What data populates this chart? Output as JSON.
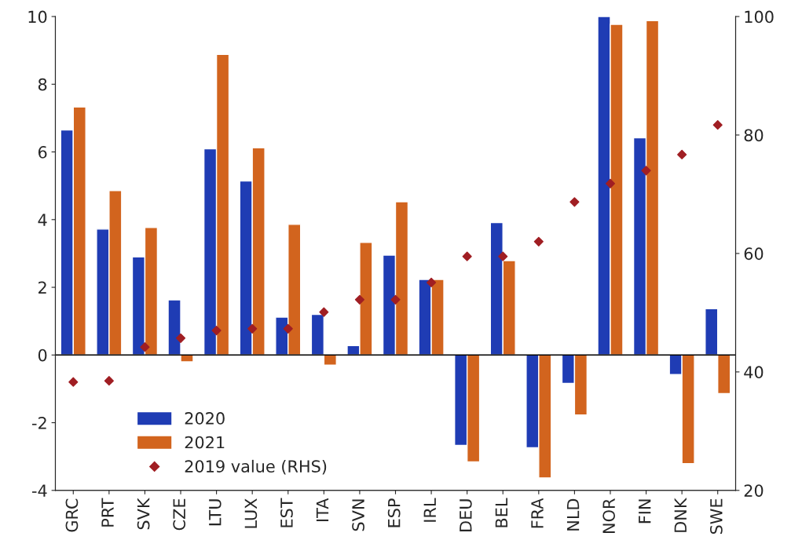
{
  "chart_data": {
    "type": "bar",
    "categories": [
      "GRC",
      "PRT",
      "SVK",
      "CZE",
      "LTU",
      "LUX",
      "EST",
      "ITA",
      "SVN",
      "ESP",
      "IRL",
      "DEU",
      "BEL",
      "FRA",
      "NLD",
      "NOR",
      "FIN",
      "DNK",
      "SWE"
    ],
    "series": [
      {
        "name": "2020",
        "color": "#1f3cb4",
        "values": [
          6.65,
          3.72,
          2.9,
          1.63,
          6.09,
          5.14,
          1.12,
          1.2,
          0.28,
          2.95,
          2.23,
          -2.67,
          3.91,
          -2.74,
          -0.84,
          10.0,
          6.42,
          -0.58,
          1.37
        ]
      },
      {
        "name": "2021",
        "color": "#d2641e",
        "values": [
          7.33,
          4.86,
          3.77,
          -0.2,
          8.88,
          6.12,
          3.86,
          -0.3,
          3.33,
          4.53,
          2.23,
          -3.16,
          2.79,
          -3.63,
          -1.77,
          9.77,
          9.88,
          -3.21,
          -1.14
        ]
      },
      {
        "name": "2019 value (RHS)",
        "type": "scatter",
        "axis": "y2",
        "marker": "diamond",
        "color": "#a01e23",
        "values": [
          38.3,
          38.5,
          44.2,
          45.7,
          47.0,
          47.3,
          47.3,
          50.1,
          52.2,
          52.2,
          55.1,
          59.5,
          59.5,
          62.0,
          68.7,
          71.8,
          74.0,
          76.7,
          81.7
        ]
      }
    ],
    "ylim": [
      -4,
      10
    ],
    "yticks": [
      -4,
      -2,
      0,
      2,
      4,
      6,
      8,
      10
    ],
    "y2lim": [
      20,
      100
    ],
    "y2ticks": [
      20,
      40,
      60,
      80,
      100
    ],
    "ref_lines": [
      {
        "axis": "y",
        "value": 0,
        "color": "#000000"
      }
    ],
    "legend": "bottom left",
    "grid": false
  }
}
